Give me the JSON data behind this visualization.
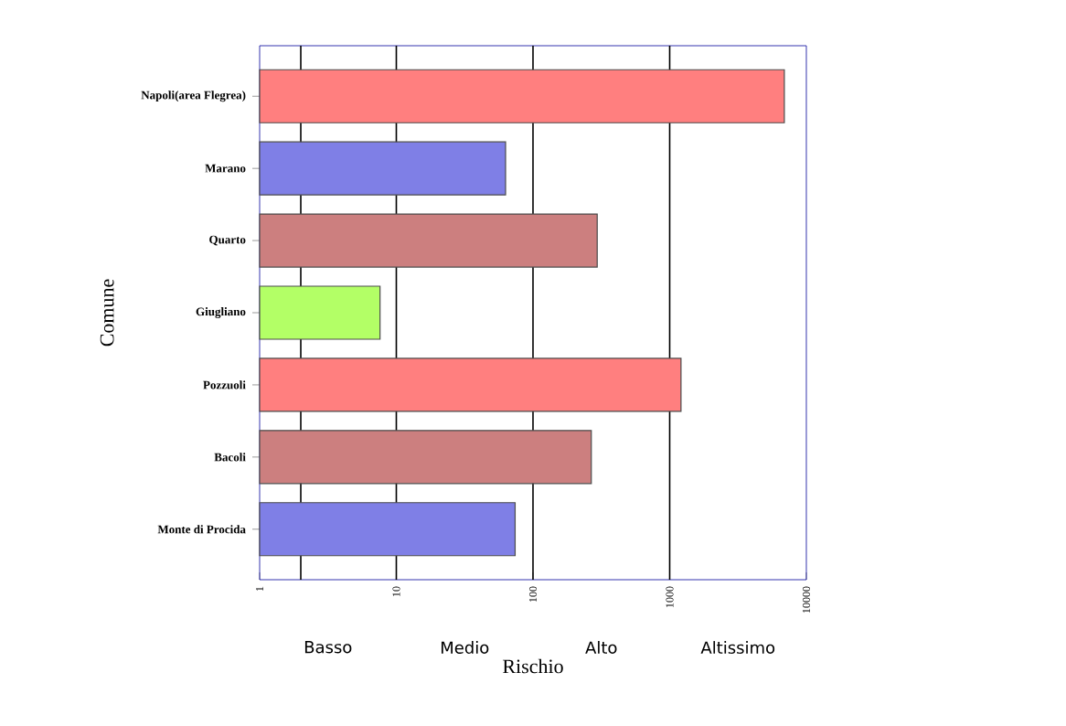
{
  "chart_data": {
    "type": "bar",
    "orientation": "horizontal",
    "xlabel": "Rischio",
    "ylabel": "Comune",
    "categories": [
      "Napoli(area Flegrea)",
      "Marano",
      "Quarto",
      "Giugliano",
      "Pozzuoli",
      "Bacoli",
      "Monte di Procida"
    ],
    "values": [
      6900,
      63,
      295,
      7.6,
      1210,
      267,
      74
    ],
    "colors": [
      "#ff7f7f",
      "#7f7fe6",
      "#cc7f7f",
      "#b3ff66",
      "#ff7f7f",
      "#cc7f7f",
      "#7f7fe6"
    ],
    "log": "x",
    "xlim": [
      1,
      10000
    ],
    "xticks": [
      1,
      10,
      100,
      1000,
      10000
    ],
    "ref_lines": [
      {
        "axis": "x",
        "value": 2
      },
      {
        "axis": "x",
        "value": 10
      },
      {
        "axis": "x",
        "value": 100
      },
      {
        "axis": "x",
        "value": 1000
      }
    ],
    "annotations": [
      "Basso",
      "Medio",
      "Alto",
      "Altissimo"
    ]
  }
}
